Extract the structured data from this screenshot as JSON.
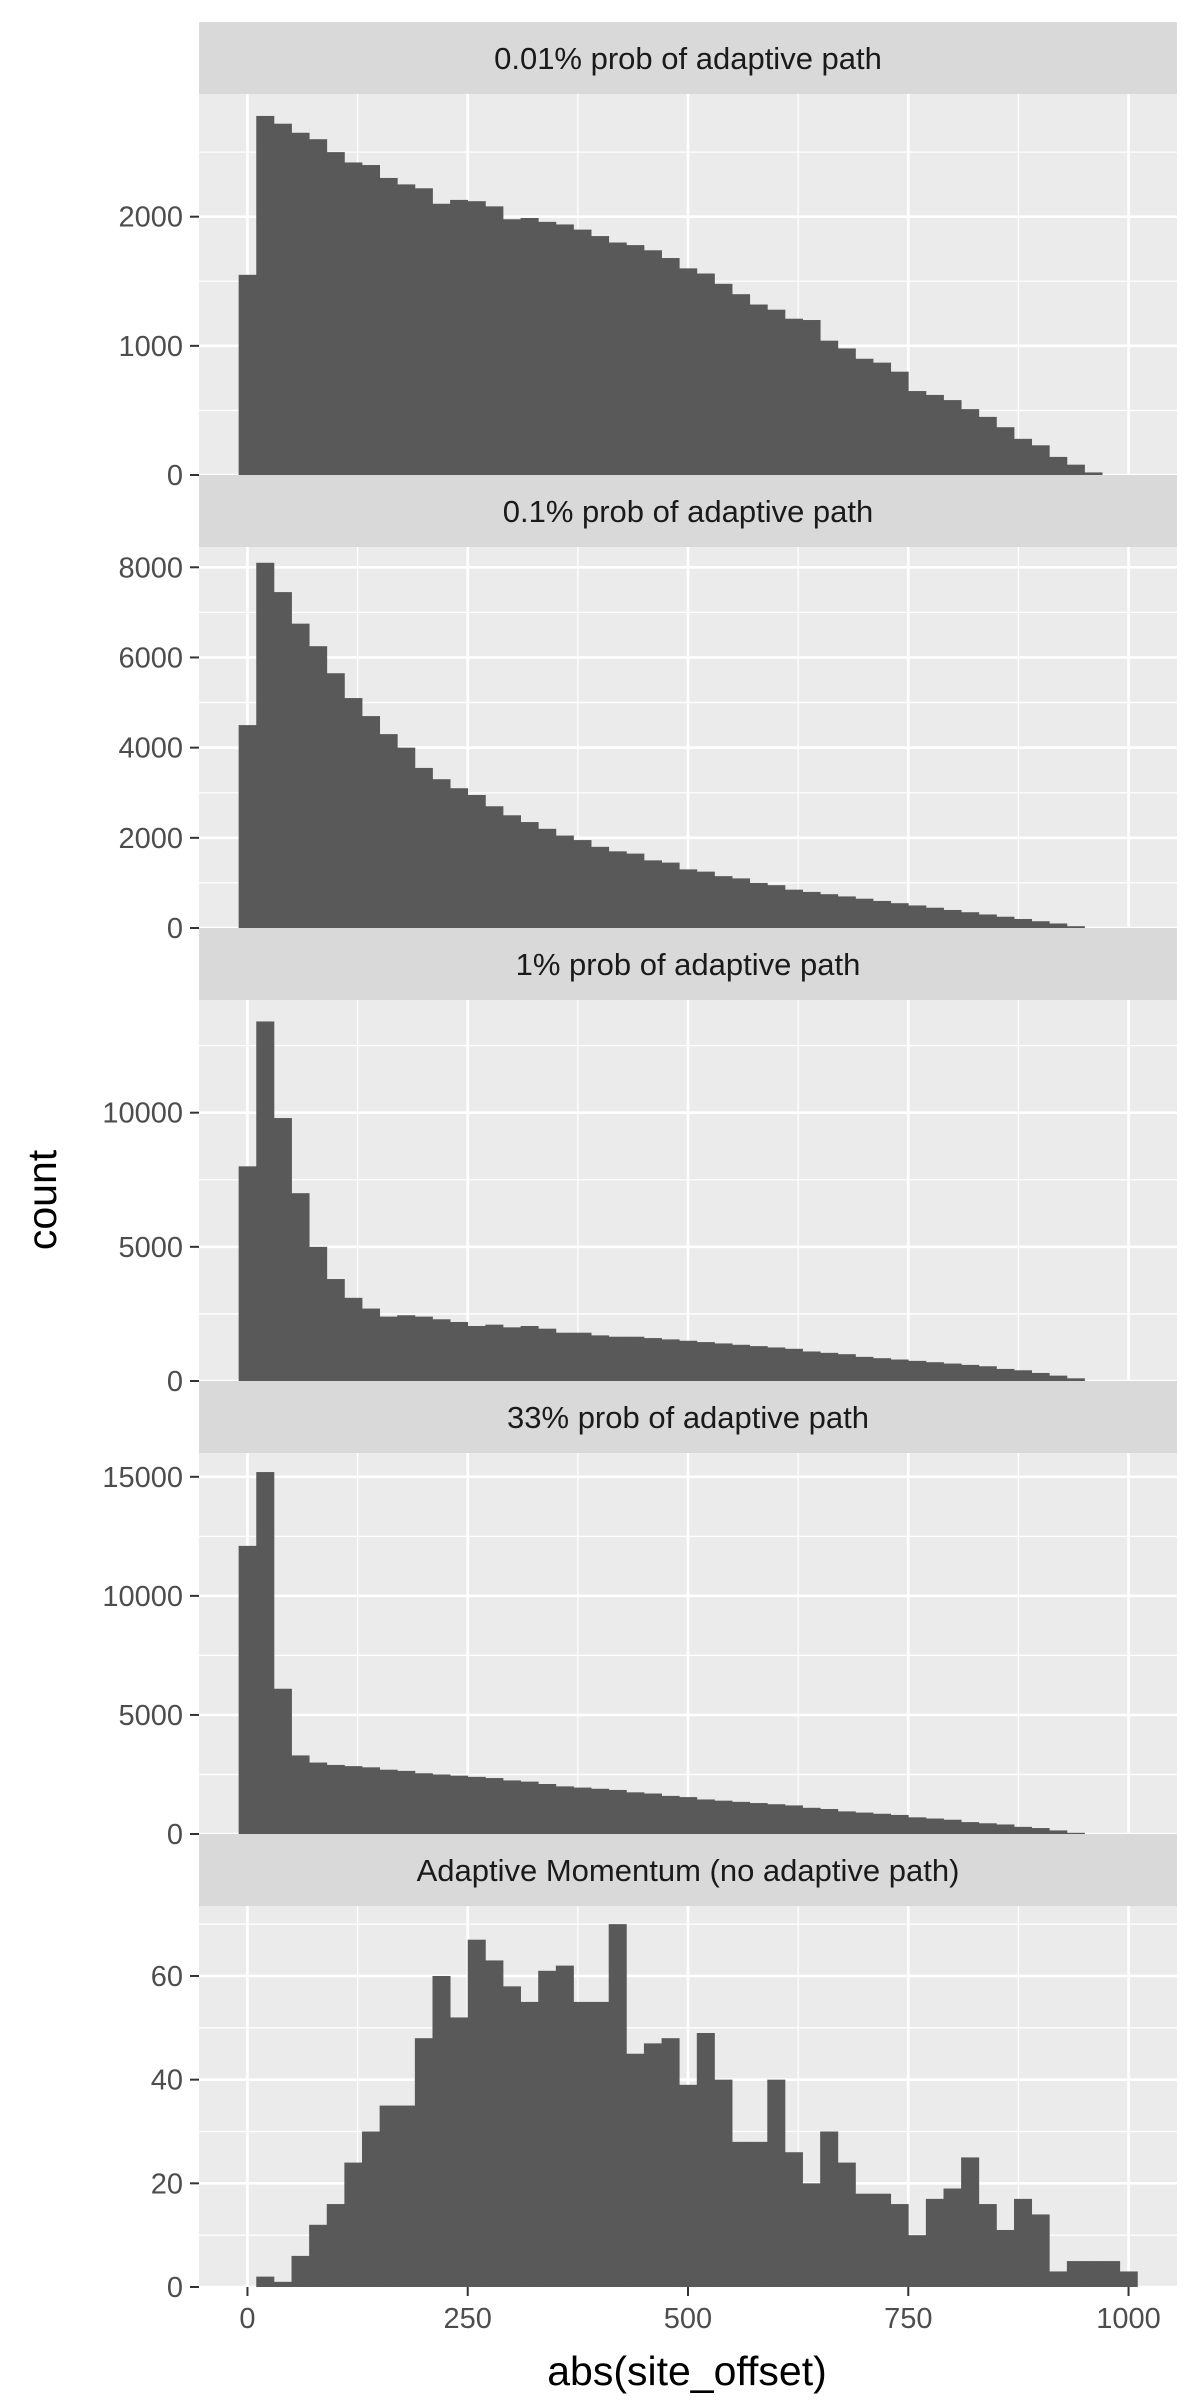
{
  "chart_data": {
    "type": "histogram",
    "xlabel": "abs(site_offset)",
    "ylabel": "count",
    "bin_width": 20,
    "x_range": [
      -55,
      1055
    ],
    "x_ticks": [
      0,
      250,
      500,
      750,
      1000
    ],
    "x_tick_labels": [
      "0",
      "250",
      "500",
      "750",
      "1000"
    ],
    "grid": true,
    "colors": {
      "bar": "#595959",
      "panel_bg": "#ebebeb",
      "strip_bg": "#d9d9d9",
      "grid": "#ffffff"
    },
    "panels": [
      {
        "title": "0.01% prob of adaptive path",
        "ylim": [
          0,
          2950
        ],
        "y_ticks": [
          0,
          1000,
          2000
        ],
        "y_tick_labels": [
          "0",
          "1000",
          "2000"
        ],
        "values": [
          1550,
          2780,
          2720,
          2650,
          2600,
          2500,
          2420,
          2400,
          2300,
          2250,
          2220,
          2100,
          2130,
          2120,
          2080,
          1980,
          1990,
          1960,
          1940,
          1900,
          1850,
          1800,
          1780,
          1740,
          1680,
          1600,
          1560,
          1480,
          1400,
          1320,
          1280,
          1210,
          1200,
          1040,
          980,
          900,
          870,
          800,
          650,
          620,
          580,
          510,
          450,
          370,
          280,
          230,
          140,
          80,
          20
        ]
      },
      {
        "title": "0.1% prob of adaptive path",
        "ylim": [
          0,
          8450
        ],
        "y_ticks": [
          0,
          2000,
          4000,
          6000,
          8000
        ],
        "y_tick_labels": [
          "0",
          "2000",
          "4000",
          "6000",
          "8000"
        ],
        "values": [
          4500,
          8100,
          7450,
          6750,
          6250,
          5650,
          5100,
          4700,
          4300,
          4000,
          3550,
          3300,
          3100,
          2950,
          2700,
          2500,
          2350,
          2200,
          2050,
          1950,
          1800,
          1700,
          1650,
          1500,
          1450,
          1300,
          1250,
          1150,
          1100,
          1000,
          950,
          850,
          800,
          750,
          700,
          650,
          600,
          550,
          500,
          450,
          400,
          350,
          300,
          250,
          200,
          150,
          100,
          40
        ]
      },
      {
        "title": "1% prob of adaptive path",
        "ylim": [
          0,
          14200
        ],
        "y_ticks": [
          0,
          5000,
          10000
        ],
        "y_tick_labels": [
          "0",
          "5000",
          "10000"
        ],
        "values": [
          8000,
          13400,
          9800,
          7000,
          5000,
          3800,
          3100,
          2700,
          2400,
          2450,
          2400,
          2300,
          2200,
          2050,
          2100,
          2000,
          2050,
          1950,
          1800,
          1800,
          1700,
          1650,
          1650,
          1600,
          1550,
          1500,
          1450,
          1400,
          1350,
          1300,
          1250,
          1200,
          1100,
          1050,
          1000,
          900,
          850,
          800,
          750,
          700,
          650,
          600,
          550,
          450,
          400,
          300,
          200,
          100
        ]
      },
      {
        "title": "33% prob of adaptive path",
        "ylim": [
          0,
          16000
        ],
        "y_ticks": [
          0,
          5000,
          10000,
          15000
        ],
        "y_tick_labels": [
          "0",
          "5000",
          "10000",
          "15000"
        ],
        "values": [
          12100,
          15200,
          6100,
          3300,
          3000,
          2900,
          2850,
          2800,
          2700,
          2650,
          2550,
          2500,
          2450,
          2400,
          2350,
          2250,
          2200,
          2100,
          2000,
          1950,
          1900,
          1850,
          1750,
          1700,
          1600,
          1550,
          1450,
          1400,
          1350,
          1300,
          1250,
          1200,
          1100,
          1050,
          950,
          900,
          850,
          800,
          700,
          650,
          600,
          500,
          450,
          400,
          300,
          250,
          150,
          50
        ]
      },
      {
        "title": "Adaptive Momentum (no adaptive path)",
        "ylim": [
          0,
          73.5
        ],
        "y_ticks": [
          0,
          20,
          40,
          60
        ],
        "y_tick_labels": [
          "0",
          "20",
          "40",
          "60"
        ],
        "values": [
          0,
          2,
          1,
          6,
          12,
          16,
          24,
          30,
          35,
          35,
          48,
          60,
          52,
          67,
          63,
          58,
          55,
          61,
          62,
          55,
          55,
          70,
          45,
          47,
          48,
          39,
          49,
          40,
          28,
          28,
          40,
          26,
          20,
          30,
          24,
          18,
          18,
          16,
          10,
          17,
          19,
          25,
          16,
          11,
          17,
          14,
          3,
          5,
          5,
          5,
          3
        ]
      }
    ]
  }
}
